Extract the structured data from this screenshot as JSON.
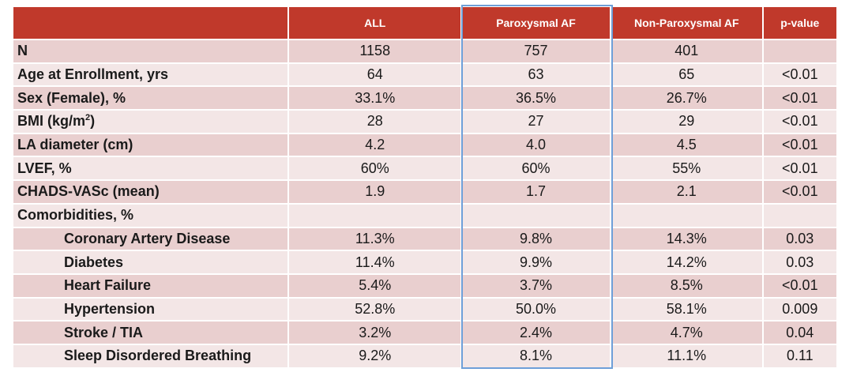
{
  "table": {
    "headers": [
      "",
      "ALL",
      "Paroxysmal AF",
      "Non-Paroxysmal AF",
      "p-value"
    ],
    "rows": [
      {
        "label": "N",
        "all": "1158",
        "paroxysmal": "757",
        "non_paroxysmal": "401",
        "p_value": "",
        "indent": false
      },
      {
        "label": "Age at Enrollment, yrs",
        "all": "64",
        "paroxysmal": "63",
        "non_paroxysmal": "65",
        "p_value": "<0.01",
        "indent": false
      },
      {
        "label": "Sex (Female), %",
        "all": "33.1%",
        "paroxysmal": "36.5%",
        "non_paroxysmal": "26.7%",
        "p_value": "<0.01",
        "indent": false
      },
      {
        "label": "BMI (kg/m",
        "label_sup": "2",
        "label_suffix": ")",
        "all": "28",
        "paroxysmal": "27",
        "non_paroxysmal": "29",
        "p_value": "<0.01",
        "indent": false
      },
      {
        "label": "LA diameter (cm)",
        "all": "4.2",
        "paroxysmal": "4.0",
        "non_paroxysmal": "4.5",
        "p_value": "<0.01",
        "indent": false
      },
      {
        "label": "LVEF, %",
        "all": "60%",
        "paroxysmal": "60%",
        "non_paroxysmal": "55%",
        "p_value": "<0.01",
        "indent": false
      },
      {
        "label": "CHADS-VASc (mean)",
        "all": "1.9",
        "paroxysmal": "1.7",
        "non_paroxysmal": "2.1",
        "p_value": "<0.01",
        "indent": false
      },
      {
        "label": "Comorbidities, %",
        "all": "",
        "paroxysmal": "",
        "non_paroxysmal": "",
        "p_value": "",
        "indent": false
      },
      {
        "label": "Coronary Artery Disease",
        "all": "11.3%",
        "paroxysmal": "9.8%",
        "non_paroxysmal": "14.3%",
        "p_value": "0.03",
        "indent": true
      },
      {
        "label": "Diabetes",
        "all": "11.4%",
        "paroxysmal": "9.9%",
        "non_paroxysmal": "14.2%",
        "p_value": "0.03",
        "indent": true
      },
      {
        "label": "Heart Failure",
        "all": "5.4%",
        "paroxysmal": "3.7%",
        "non_paroxysmal": "8.5%",
        "p_value": "<0.01",
        "indent": true
      },
      {
        "label": "Hypertension",
        "all": "52.8%",
        "paroxysmal": "50.0%",
        "non_paroxysmal": "58.1%",
        "p_value": "0.009",
        "indent": true
      },
      {
        "label": "Stroke / TIA",
        "all": "3.2%",
        "paroxysmal": "2.4%",
        "non_paroxysmal": "4.7%",
        "p_value": "0.04",
        "indent": true
      },
      {
        "label": "Sleep Disordered Breathing",
        "all": "9.2%",
        "paroxysmal": "8.1%",
        "non_paroxysmal": "11.1%",
        "p_value": "0.11",
        "indent": true
      }
    ]
  },
  "colors": {
    "header_bg": "#c0392b",
    "row_odd": "#e9cfcf",
    "row_even": "#f3e6e6",
    "highlight_border": "#6e9fd8"
  }
}
